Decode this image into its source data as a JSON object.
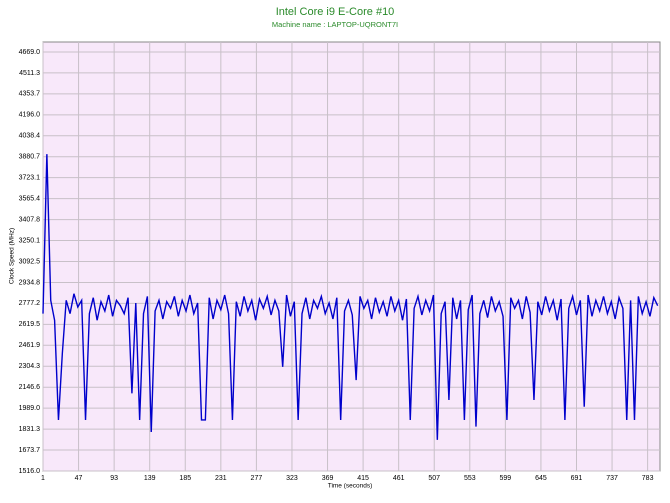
{
  "chart_data": {
    "type": "line",
    "title": "Intel Core i9 E-Core #10",
    "subtitle": "Machine name : LAPTOP-UQRONT7I",
    "x_label": "Time (seconds)",
    "y_label": "Clock Speed (MHz)",
    "grid": true,
    "xlim": [
      1,
      799
    ],
    "xticks": [
      1,
      47,
      93,
      139,
      185,
      231,
      277,
      323,
      369,
      415,
      461,
      507,
      553,
      599,
      645,
      691,
      737,
      783
    ],
    "ylim": [
      1516,
      4744
    ],
    "yticks": [
      {
        "value": 1516,
        "label": "1516.0"
      },
      1673.7,
      1831.3,
      {
        "value": 1989,
        "label": "1989.0"
      },
      2146.6,
      2304.3,
      2461.9,
      2619.5,
      2777.2,
      2934.8,
      3092.5,
      3250.1,
      3407.8,
      3565.4,
      3723.1,
      3880.7,
      4038.4,
      {
        "value": 4196,
        "label": "4196.0"
      },
      4353.7,
      4511.3,
      {
        "value": 4669,
        "label": "4669.0"
      }
    ],
    "x": [
      1,
      6,
      11,
      16,
      21,
      26,
      31,
      36,
      41,
      46,
      51,
      56,
      61,
      66,
      71,
      76,
      81,
      86,
      91,
      96,
      101,
      106,
      111,
      116,
      121,
      126,
      131,
      136,
      141,
      146,
      151,
      156,
      161,
      166,
      171,
      176,
      181,
      186,
      191,
      196,
      201,
      206,
      211,
      216,
      221,
      226,
      231,
      236,
      241,
      246,
      251,
      256,
      261,
      266,
      271,
      276,
      281,
      286,
      291,
      296,
      301,
      306,
      311,
      316,
      321,
      326,
      331,
      336,
      341,
      346,
      351,
      356,
      361,
      366,
      371,
      376,
      381,
      386,
      391,
      396,
      401,
      406,
      411,
      416,
      421,
      426,
      431,
      436,
      441,
      446,
      451,
      456,
      461,
      466,
      471,
      476,
      481,
      486,
      491,
      496,
      501,
      506,
      511,
      516,
      521,
      526,
      531,
      536,
      541,
      546,
      551,
      556,
      561,
      566,
      571,
      576,
      581,
      586,
      591,
      596,
      601,
      606,
      611,
      616,
      621,
      626,
      631,
      636,
      641,
      646,
      651,
      656,
      661,
      666,
      671,
      676,
      681,
      686,
      691,
      696,
      701,
      706,
      711,
      716,
      721,
      726,
      731,
      736,
      741,
      746,
      751,
      756,
      761,
      766,
      771,
      776,
      781,
      786,
      791,
      796
    ],
    "series": [
      {
        "name": "Clock Speed",
        "color": "#0000cc",
        "values": [
          2700,
          3900,
          2800,
          2650,
          1900,
          2400,
          2800,
          2700,
          2850,
          2750,
          2800,
          1900,
          2700,
          2820,
          2650,
          2790,
          2720,
          2840,
          2680,
          2800,
          2760,
          2700,
          2820,
          2100,
          2780,
          1900,
          2700,
          2830,
          1810,
          2720,
          2800,
          2660,
          2790,
          2740,
          2830,
          2680,
          2800,
          2720,
          2840,
          2700,
          2780,
          1900,
          1900,
          2820,
          2660,
          2800,
          2730,
          2840,
          2700,
          1900,
          2790,
          2680,
          2830,
          2720,
          2800,
          2650,
          2810,
          2740,
          2830,
          2690,
          2800,
          2720,
          2300,
          2840,
          2680,
          2790,
          1900,
          2700,
          2820,
          2660,
          2800,
          2740,
          2830,
          2700,
          2780,
          2660,
          2820,
          1900,
          2720,
          2800,
          2690,
          2200,
          2830,
          2740,
          2800,
          2660,
          2820,
          2710,
          2790,
          2680,
          2830,
          2720,
          2800,
          2650,
          2810,
          1900,
          2740,
          2830,
          2690,
          2800,
          2720,
          2840,
          1750,
          2700,
          2790,
          2050,
          2820,
          2660,
          2800,
          1900,
          2730,
          2840,
          1850,
          2700,
          2800,
          2670,
          2830,
          2720,
          2790,
          2680,
          1900,
          2820,
          2740,
          2800,
          2660,
          2830,
          2710,
          2050,
          2790,
          2690,
          2830,
          2720,
          2800,
          2650,
          2810,
          1900,
          2740,
          2830,
          2690,
          2800,
          2000,
          2840,
          2680,
          2800,
          2720,
          2830,
          2700,
          2790,
          2660,
          2820,
          2740,
          1900,
          2800,
          1900,
          2830,
          2700,
          2790,
          2680,
          2820,
          2760
        ]
      }
    ]
  }
}
